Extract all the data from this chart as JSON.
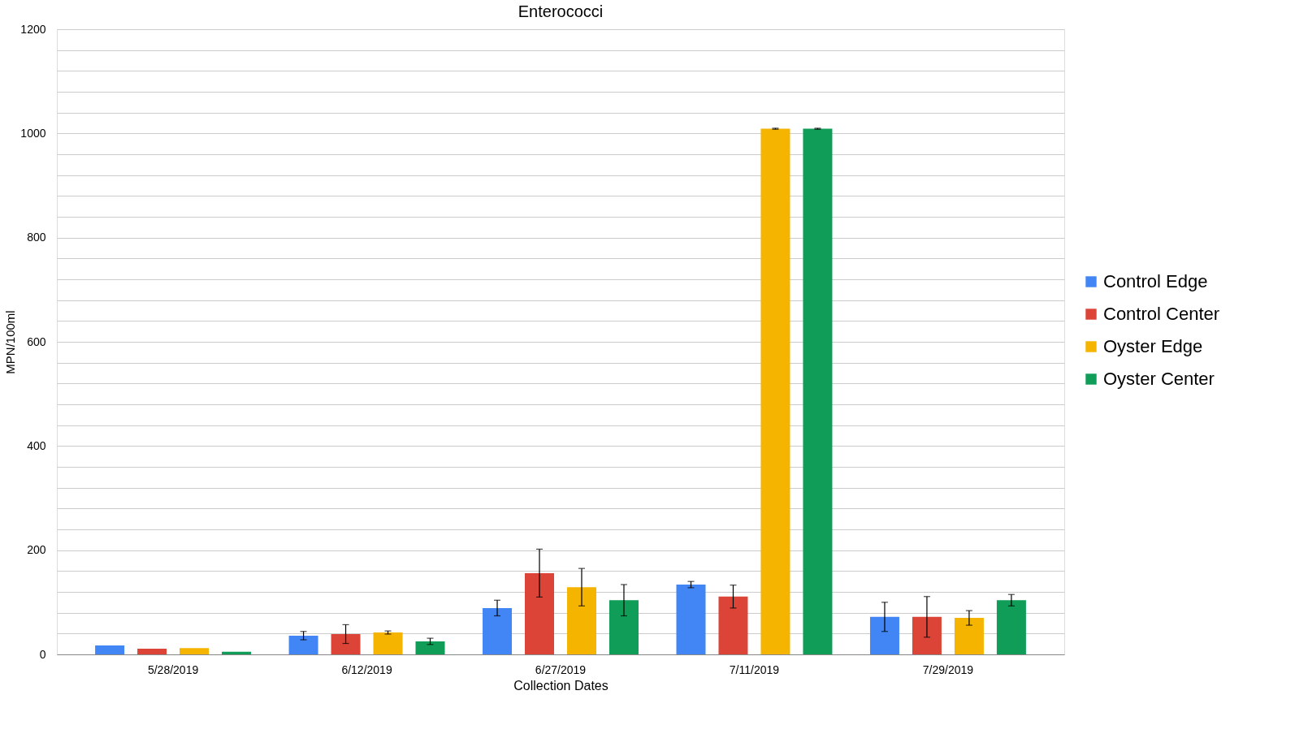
{
  "chart_data": {
    "type": "bar",
    "title": "Enterococci",
    "xlabel": "Collection Dates",
    "ylabel": "MPN/100ml",
    "categories": [
      "5/28/2019",
      "6/12/2019",
      "6/27/2019",
      "7/11/2019",
      "7/29/2019"
    ],
    "series": [
      {
        "name": "Control Edge",
        "color": "#4285f4",
        "values": [
          17,
          36,
          89,
          134,
          72
        ],
        "errors": [
          null,
          8,
          15,
          6,
          28
        ]
      },
      {
        "name": "Control Center",
        "color": "#db4437",
        "values": [
          11,
          39,
          156,
          111,
          72
        ],
        "errors": [
          null,
          18,
          46,
          22,
          39
        ]
      },
      {
        "name": "Oyster Edge",
        "color": "#f4b400",
        "values": [
          12,
          42,
          129,
          1009,
          70
        ],
        "errors": [
          null,
          3,
          36,
          1,
          14
        ]
      },
      {
        "name": "Oyster Center",
        "color": "#0f9d58",
        "values": [
          5,
          25,
          104,
          1009,
          104
        ],
        "errors": [
          null,
          6,
          30,
          1,
          11
        ]
      }
    ],
    "ylim": [
      0,
      1200
    ],
    "yticks": [
      0,
      {
        "value": 40,
        "label": null
      },
      {
        "value": 80,
        "label": null
      },
      {
        "value": 120,
        "label": null
      },
      {
        "value": 160,
        "label": null
      },
      200,
      {
        "value": 240,
        "label": null
      },
      {
        "value": 280,
        "label": null
      },
      {
        "value": 320,
        "label": null
      },
      {
        "value": 360,
        "label": null
      },
      400,
      {
        "value": 440,
        "label": null
      },
      {
        "value": 480,
        "label": null
      },
      {
        "value": 520,
        "label": null
      },
      {
        "value": 560,
        "label": null
      },
      600,
      {
        "value": 640,
        "label": null
      },
      {
        "value": 680,
        "label": null
      },
      {
        "value": 720,
        "label": null
      },
      {
        "value": 760,
        "label": null
      },
      800,
      {
        "value": 840,
        "label": null
      },
      {
        "value": 880,
        "label": null
      },
      {
        "value": 920,
        "label": null
      },
      {
        "value": 960,
        "label": null
      },
      1000,
      {
        "value": 1040,
        "label": null
      },
      {
        "value": 1080,
        "label": null
      },
      {
        "value": 1120,
        "label": null
      },
      {
        "value": 1160,
        "label": null
      },
      1200
    ],
    "grid": "y",
    "legend": "right"
  }
}
